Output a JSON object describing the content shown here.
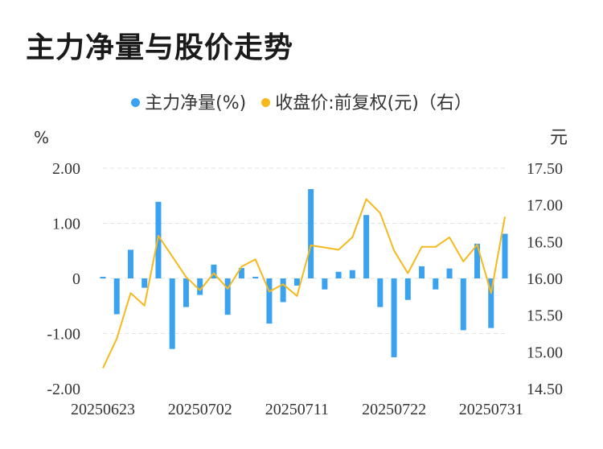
{
  "title": "主力净量与股价走势",
  "legend": {
    "net": "主力净量(%)",
    "price": "收盘价:前复权(元)（右）"
  },
  "colors": {
    "bar": "#3ba2f0",
    "line": "#f5b91c",
    "grid": "#e3e3e3"
  },
  "axis_units": {
    "left": "%",
    "right": "元"
  },
  "chart_data": {
    "type": "bar+line",
    "title": "主力净量与股价走势",
    "x_tick_labels": [
      "20250623",
      "20250702",
      "20250711",
      "20250722",
      "20250731"
    ],
    "x_tick_index": [
      0,
      7,
      14,
      21,
      28
    ],
    "dates": [
      "20250623",
      "20250624",
      "20250625",
      "20250626",
      "20250627",
      "20250630",
      "20250701",
      "20250702",
      "20250703",
      "20250704",
      "20250707",
      "20250708",
      "20250709",
      "20250710",
      "20250711",
      "20250714",
      "20250715",
      "20250716",
      "20250717",
      "20250718",
      "20250721",
      "20250722",
      "20250723",
      "20250724",
      "20250725",
      "20250728",
      "20250729",
      "20250730",
      "20250731",
      "20250801"
    ],
    "y_left": {
      "ticks": [
        2.0,
        1.0,
        0,
        -1.0,
        -2.0
      ],
      "tick_labels": [
        "2.00",
        "1.00",
        "0",
        "-1.00",
        "-2.00"
      ],
      "range": [
        -2,
        2
      ]
    },
    "y_right": {
      "ticks": [
        17.5,
        17.0,
        16.5,
        16.0,
        15.5,
        15.0,
        14.5
      ],
      "tick_labels": [
        "17.50",
        "17.00",
        "16.50",
        "16.00",
        "15.50",
        "15.00",
        "14.50"
      ],
      "range": [
        14.5,
        17.5
      ]
    },
    "grid": true,
    "legend_position": "top-center",
    "series": [
      {
        "name": "主力净量(%)",
        "type": "bar",
        "axis": "left",
        "values": [
          0.03,
          -0.65,
          0.52,
          -0.17,
          1.39,
          -1.28,
          -0.52,
          -0.3,
          0.25,
          -0.66,
          0.19,
          0.03,
          -0.82,
          -0.43,
          -0.13,
          1.62,
          -0.2,
          0.12,
          0.15,
          1.15,
          -0.52,
          -1.43,
          -0.39,
          0.22,
          -0.2,
          0.18,
          -0.94,
          0.63,
          -0.9,
          0.81
        ]
      },
      {
        "name": "收盘价:前复权(元)（右）",
        "type": "line",
        "axis": "right",
        "values": [
          14.78,
          15.18,
          15.8,
          15.63,
          16.58,
          16.3,
          16.02,
          15.84,
          16.07,
          15.86,
          16.16,
          16.26,
          15.82,
          15.92,
          15.76,
          16.45,
          16.42,
          16.39,
          16.56,
          17.08,
          16.89,
          16.38,
          16.07,
          16.43,
          16.43,
          16.56,
          16.23,
          16.46,
          15.8,
          16.84
        ]
      }
    ]
  }
}
